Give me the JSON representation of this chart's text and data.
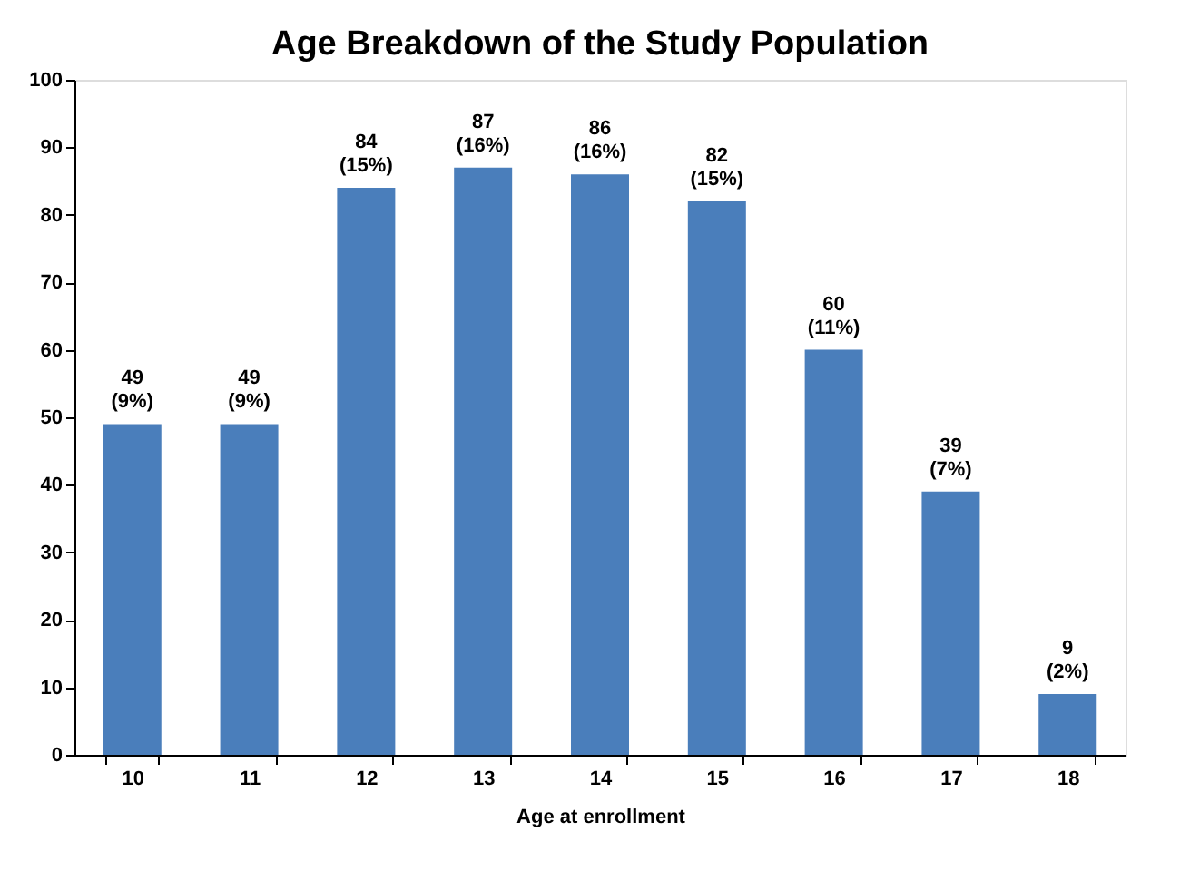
{
  "chart_data": {
    "type": "bar",
    "title": "Age Breakdown of the Study Population",
    "xlabel": "Age at enrollment",
    "categories": [
      "10",
      "11",
      "12",
      "13",
      "14",
      "15",
      "16",
      "17",
      "18"
    ],
    "values": [
      49,
      49,
      84,
      87,
      86,
      82,
      60,
      39,
      9
    ],
    "value_labels": [
      "49\n(9%)",
      "49\n(9%)",
      "84\n(15%)",
      "87\n(16%)",
      "86\n(16%)",
      "82\n(15%)",
      "60\n(11%)",
      "39\n(7%)",
      "9\n(2%)"
    ],
    "color": "#4a7ebb",
    "ylim": [
      0,
      100
    ],
    "yticks": [
      0,
      10,
      20,
      30,
      40,
      50,
      60,
      70,
      80,
      90,
      100
    ],
    "grid": false
  }
}
